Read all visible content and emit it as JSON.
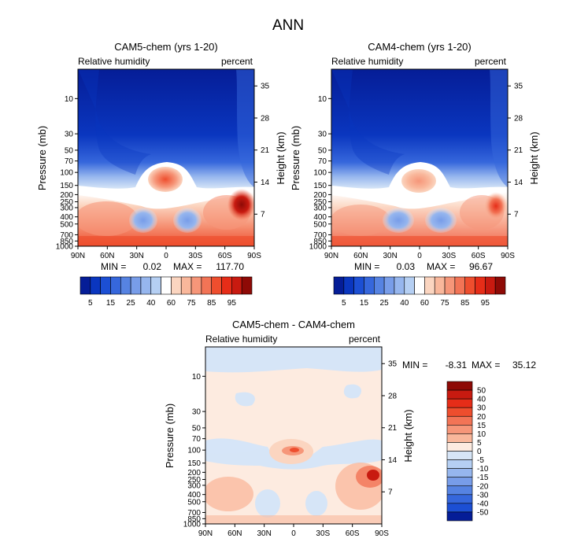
{
  "figure_title": "ANN",
  "colors": {
    "positive": [
      "#fdebe0",
      "#fbd5c0",
      "#f9b79b",
      "#f69679",
      "#f27456",
      "#ee4e2e",
      "#e62d18",
      "#c81a10",
      "#8e0a06"
    ],
    "negative": [
      "#d6e5f7",
      "#b5cff3",
      "#96b6ee",
      "#789de9",
      "#5683e2",
      "#3667dc",
      "#1c4fd4",
      "#0a36bf",
      "#051d97"
    ],
    "white_band": "#ffffff"
  },
  "chart_data": [
    {
      "type": "heatmap",
      "id": "cam5",
      "title": "CAM5-chem (yrs 1-20)",
      "subtitle_left": "Relative humidity",
      "subtitle_right": "percent",
      "xlabel": "",
      "ylabel": "Pressure (mb)",
      "ylabel_right": "Height (km)",
      "x_ticks": [
        "90N",
        "60N",
        "30N",
        "0",
        "30S",
        "60S",
        "90S"
      ],
      "x_range": [
        90,
        -90
      ],
      "y_log_scale": true,
      "y_range_mb": [
        1000,
        4
      ],
      "y_ticks": [
        10,
        30,
        50,
        70,
        100,
        150,
        200,
        250,
        300,
        400,
        500,
        700,
        850,
        1000
      ],
      "y_right_ticks": [
        35,
        28,
        21,
        14,
        7
      ],
      "min_label": "MIN =",
      "min": "0.02",
      "max_label": "MAX =",
      "max": "117.70",
      "colorbar_levels": [
        5,
        10,
        15,
        20,
        25,
        30,
        40,
        50,
        60,
        70,
        75,
        80,
        85,
        90,
        95
      ],
      "colorbar_labels": [
        "5",
        "15",
        "25",
        "40",
        "60",
        "75",
        "85",
        "95"
      ]
    },
    {
      "type": "heatmap",
      "id": "cam4",
      "title": "CAM4-chem (yrs 1-20)",
      "subtitle_left": "Relative humidity",
      "subtitle_right": "percent",
      "xlabel": "",
      "ylabel": "Pressure (mb)",
      "ylabel_right": "Height (km)",
      "x_ticks": [
        "90N",
        "60N",
        "30N",
        "0",
        "30S",
        "60S",
        "90S"
      ],
      "x_range": [
        90,
        -90
      ],
      "y_log_scale": true,
      "y_range_mb": [
        1000,
        4
      ],
      "y_ticks": [
        10,
        30,
        50,
        70,
        100,
        150,
        200,
        250,
        300,
        400,
        500,
        700,
        850,
        1000
      ],
      "y_right_ticks": [
        35,
        28,
        21,
        14,
        7
      ],
      "min_label": "MIN =",
      "min": "0.03",
      "max_label": "MAX =",
      "max": "96.67",
      "colorbar_levels": [
        5,
        10,
        15,
        20,
        25,
        30,
        40,
        50,
        60,
        70,
        75,
        80,
        85,
        90,
        95
      ],
      "colorbar_labels": [
        "5",
        "15",
        "25",
        "40",
        "60",
        "75",
        "85",
        "95"
      ]
    },
    {
      "type": "heatmap",
      "id": "diff",
      "title": "CAM5-chem - CAM4-chem",
      "subtitle_left": "Relative humidity",
      "subtitle_right": "percent",
      "xlabel": "",
      "ylabel": "Pressure (mb)",
      "ylabel_right": "Height (km)",
      "x_ticks": [
        "90N",
        "60N",
        "30N",
        "0",
        "30S",
        "60S",
        "90S"
      ],
      "x_range": [
        90,
        -90
      ],
      "y_log_scale": true,
      "y_range_mb": [
        1000,
        4
      ],
      "y_ticks": [
        10,
        30,
        50,
        70,
        100,
        150,
        200,
        250,
        300,
        400,
        500,
        700,
        850,
        1000
      ],
      "y_right_ticks": [
        35,
        28,
        21,
        14,
        7
      ],
      "min_label": "MIN =",
      "min": "-8.31",
      "max_label": "MAX =",
      "max": "35.12",
      "colorbar_levels": [
        50,
        40,
        30,
        20,
        15,
        10,
        5,
        0,
        -5,
        -10,
        -15,
        -20,
        -30,
        -40,
        -50
      ],
      "colorbar_labels": [
        "50",
        "40",
        "30",
        "20",
        "15",
        "10",
        "5",
        "0",
        "-5",
        "-10",
        "-15",
        "-20",
        "-30",
        "-40",
        "-50"
      ]
    }
  ]
}
